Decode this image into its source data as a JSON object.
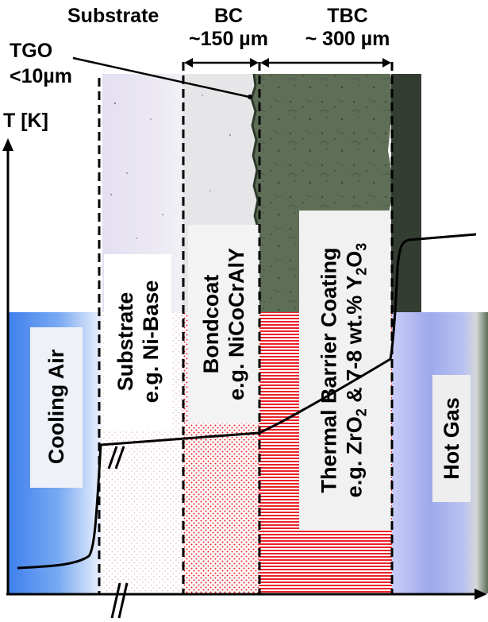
{
  "headers": {
    "substrate": "Substrate",
    "bc_name": "BC",
    "bc_thickness": "~150 µm",
    "tbc_name": "TBC",
    "tbc_thickness": "~ 300 µm",
    "tgo_name": "TGO",
    "tgo_thickness": "<10µm"
  },
  "axis": {
    "y_label": "T [K]"
  },
  "layers": {
    "cooling_air": "Cooling Air",
    "substrate_line1": "Substrate",
    "substrate_line2": "e.g. Ni-Base",
    "bondcoat_line1": "Bondcoat",
    "bondcoat_line2": "e.g. NiCoCrAlY",
    "tbc_line1": "Thermal Barrier Coating",
    "tbc_line2_prefix": "e.g. ZrO",
    "tbc_line2_sub1": "2",
    "tbc_line2_mid": " & 7-8 wt.% Y",
    "tbc_line2_sub2": "2",
    "tbc_line2_sub3": "O",
    "tbc_line2_sub4": "3",
    "hot_gas": "Hot Gas"
  },
  "colors": {
    "cooling_air": "#4f8ef0",
    "substrate_micrograph": "#e6e2f0",
    "bondcoat_micrograph": "#e8e8ea",
    "tbc_micrograph": "#5c6b52",
    "bondcoat_dots": "#e8242a",
    "tbc_stripes": "#e8242a",
    "hot_gas": "#a9b4ef",
    "temperature_curve": "#000000"
  },
  "temperature_profile": [
    {
      "zone": "cooling air",
      "trend": "rises steeply near wall"
    },
    {
      "zone": "substrate",
      "trend": "nearly flat"
    },
    {
      "zone": "bondcoat",
      "trend": "nearly flat"
    },
    {
      "zone": "thermal barrier coating",
      "trend": "steep rise"
    },
    {
      "zone": "hot gas",
      "trend": "high, slightly rising"
    }
  ]
}
